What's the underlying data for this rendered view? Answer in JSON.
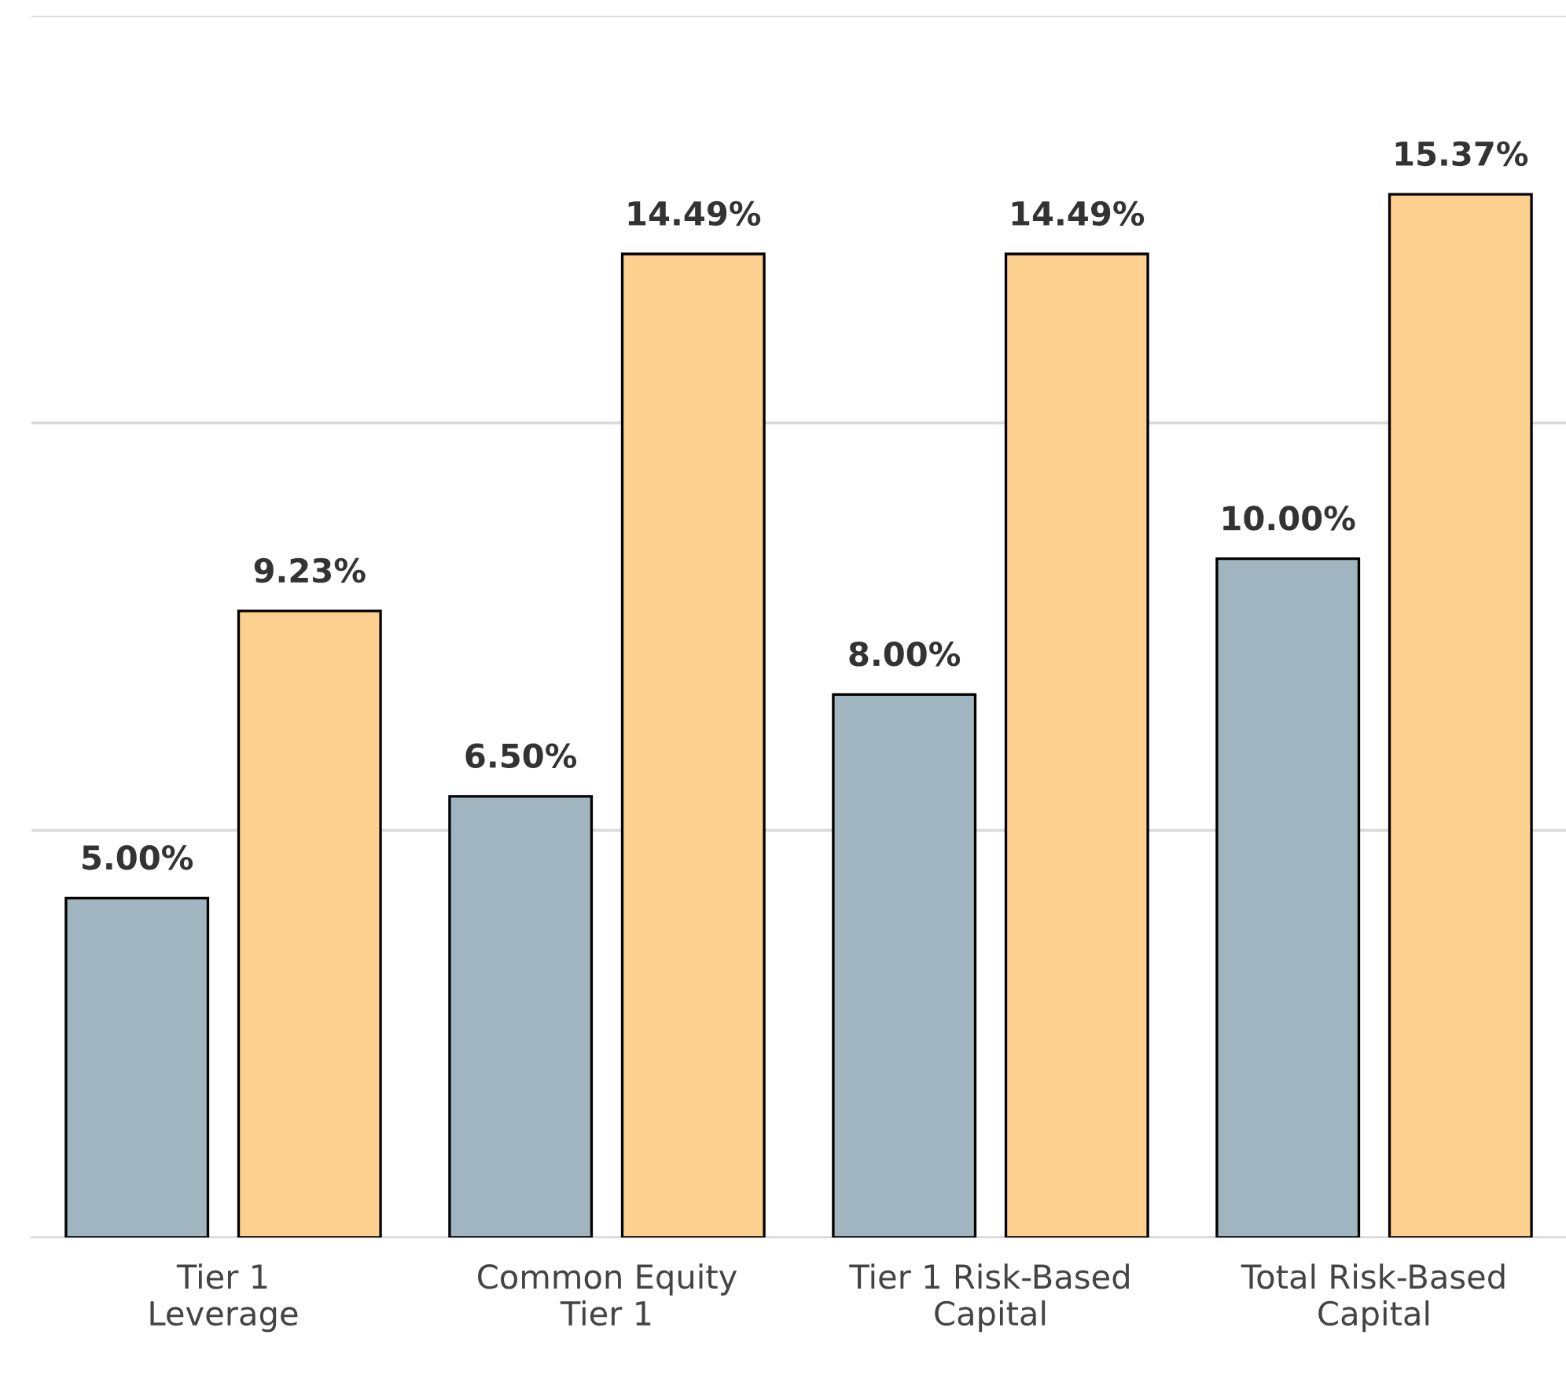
{
  "chart_data": {
    "type": "bar",
    "categories": [
      "Tier 1\nLeverage",
      "Common Equity\nTier 1",
      "Tier 1 Risk-Based\nCapital",
      "Total Risk-Based\nCapital"
    ],
    "series": [
      {
        "color": "#a0b5bf",
        "values": [
          5.0,
          6.5,
          8.0,
          10.0
        ],
        "value_labels": [
          "5.00%",
          "6.50%",
          "8.00%",
          "10.00%"
        ]
      },
      {
        "color": "#fdd08f",
        "values": [
          9.23,
          14.49,
          14.49,
          15.37
        ],
        "value_labels": [
          "9.23%",
          "14.49%",
          "14.49%",
          "15.37%"
        ]
      }
    ],
    "ylim": [
      0,
      18
    ],
    "yticks": [
      {
        "value": 0,
        "label": null
      },
      {
        "value": 6,
        "label": null
      },
      {
        "value": 12,
        "label": null
      },
      {
        "value": 18,
        "label": null
      }
    ],
    "grid": "y",
    "tick_labels": "x",
    "legend": false
  }
}
